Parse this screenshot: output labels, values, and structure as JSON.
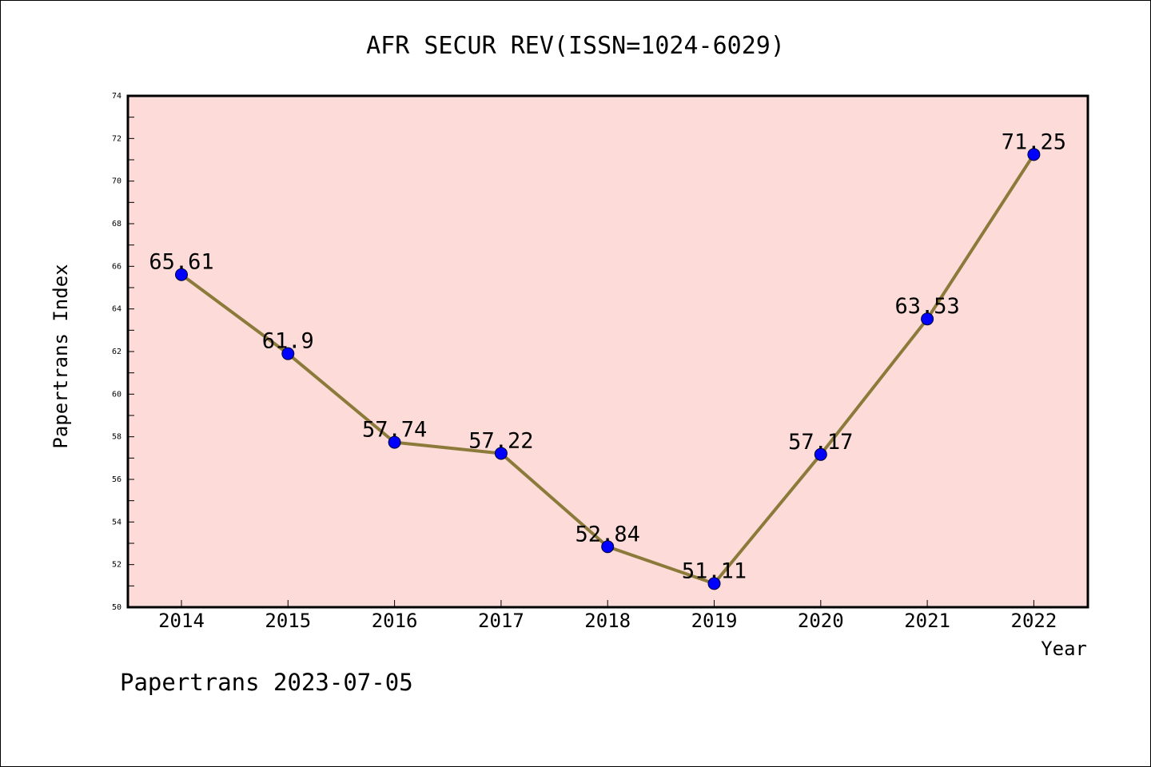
{
  "chart_data": {
    "type": "line",
    "title": "AFR SECUR REV(ISSN=1024-6029)",
    "xlabel": "Year",
    "ylabel": "Papertrans Index",
    "footer": "Papertrans 2023-07-05",
    "categories": [
      "2014",
      "2015",
      "2016",
      "2017",
      "2018",
      "2019",
      "2020",
      "2021",
      "2022"
    ],
    "values": [
      65.61,
      61.9,
      57.74,
      57.22,
      52.84,
      51.11,
      57.17,
      63.53,
      71.25
    ],
    "data_labels": [
      "65.61",
      "61.9",
      "57.74",
      "57.22",
      "52.84",
      "51.11",
      "57.17",
      "63.53",
      "71.25"
    ],
    "ylim": [
      50,
      74
    ],
    "yticks": [
      "50",
      "52",
      "54",
      "56",
      "58",
      "60",
      "62",
      "64",
      "66",
      "68",
      "70",
      "72",
      "74"
    ],
    "grid": false,
    "legend": "none",
    "colors": {
      "plot_background": "#fddbd9",
      "line": "#8c7a3a",
      "marker": "#0000ff"
    }
  }
}
